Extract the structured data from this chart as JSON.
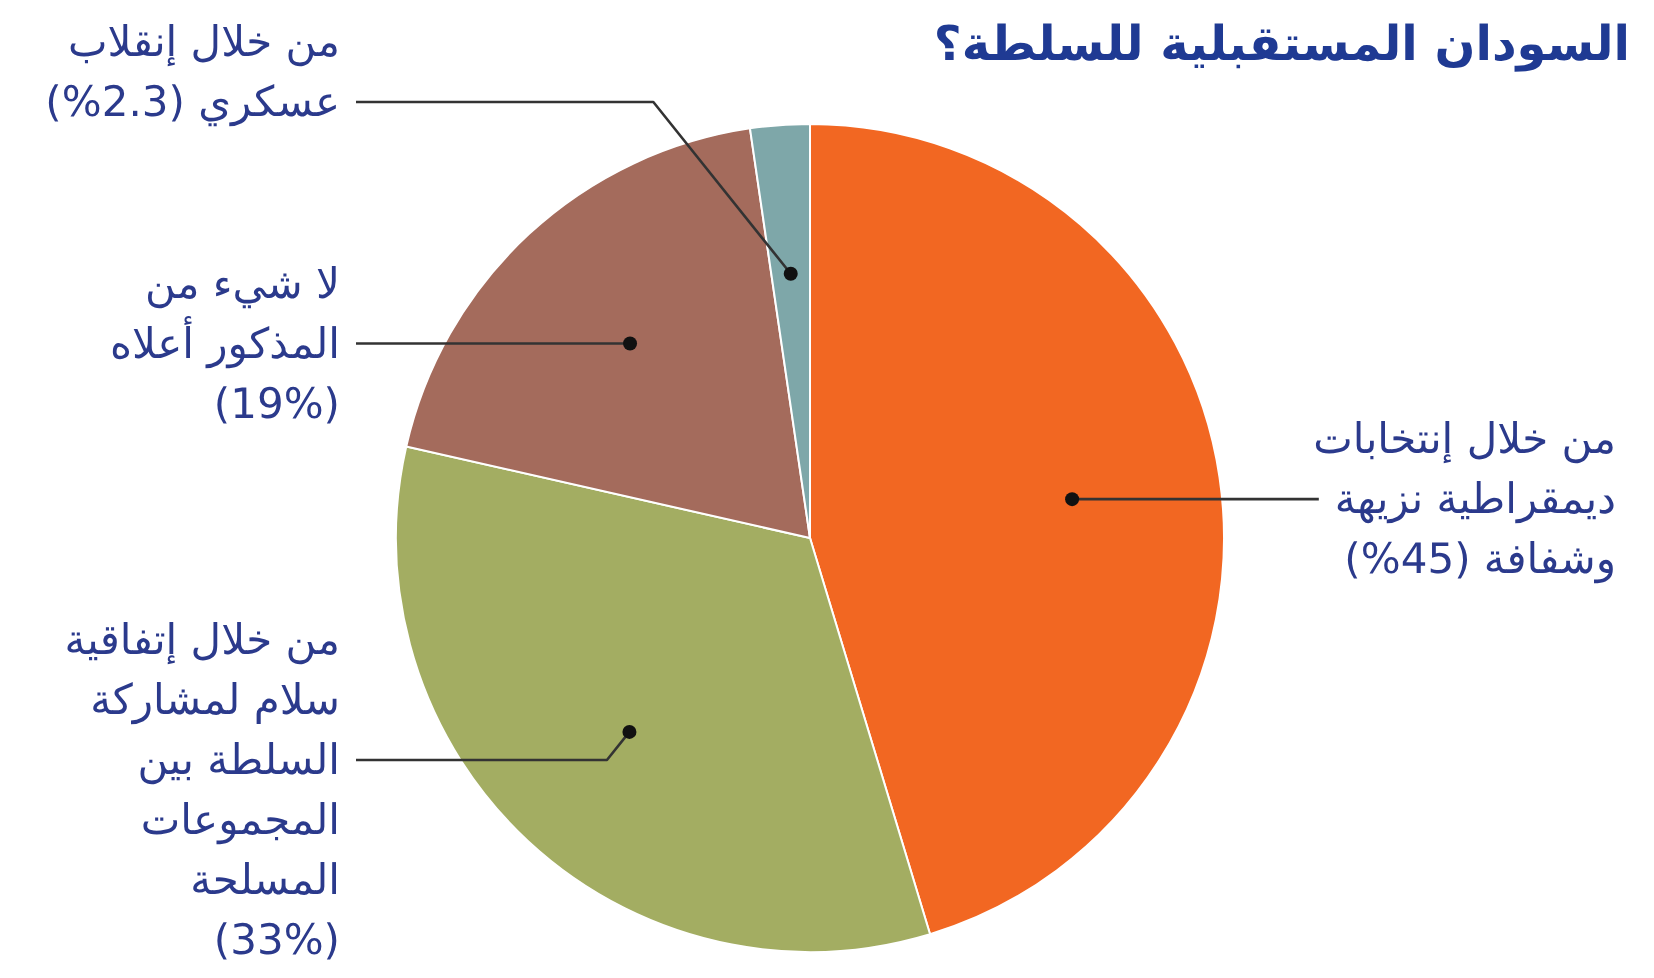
{
  "chart_data": {
    "type": "pie",
    "title": "السودان المستقبلية للسلطة؟",
    "categories": [
      "من خلال إنتخابات\nديمقراطية نزيهة\nوشفافة (45%)",
      "من خلال إتفاقية\nسلام لمشاركة\nالسلطة بين\nالمجموعات\nالمسلحة\n(33%)",
      "لا شيء من\nالمذكور أعلاه\n(19%)",
      "من خلال إنقلاب\nعسكري (2.3%)"
    ],
    "values": [
      45,
      33,
      19,
      2.3
    ],
    "colors": [
      "#f26722",
      "#a3ad62",
      "#a46b5c",
      "#7ea7a9"
    ]
  }
}
